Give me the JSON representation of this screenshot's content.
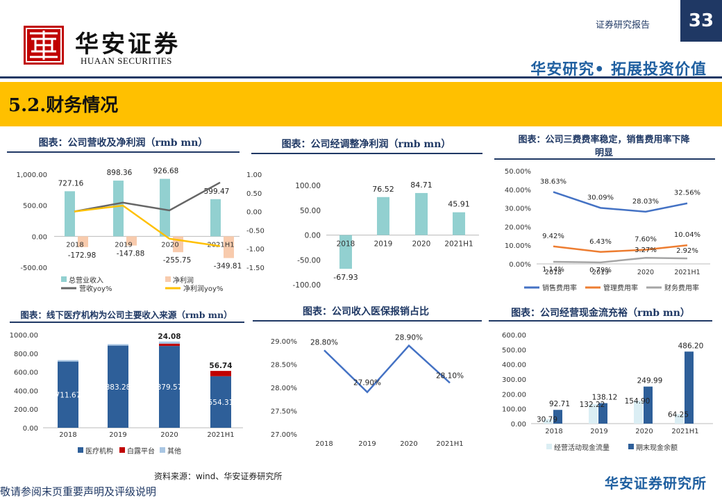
{
  "header": {
    "logo_cn": "华安证券",
    "logo_en": "HUAAN SECURITIES",
    "report_type": "证券研究报告",
    "page_number": "33",
    "slogan": "华安研究• 拓展投资价值",
    "colors": {
      "navy": "#1f3864",
      "accent": "#1f5fa0",
      "band": "#ffc000",
      "seal": "#c00000"
    }
  },
  "section_title": "5.2.财务情况",
  "chart_titles": {
    "c1": "图表：公司营收及净利润（rmb mn）",
    "c2": "图表：公司经调整净利润（rmb mn）",
    "c3_line1": "图表：公司三费费率稳定，销售费用率下降",
    "c3_line2": "明显",
    "c4": "图表：线下医疗机构为公司主要收入来源（rmb mn）",
    "c5": "图表：公司收入医保报销占比",
    "c6": "图表：公司经营现金流充裕（rmb mn）"
  },
  "chart_data": [
    {
      "id": "c1",
      "type": "bar",
      "categories": [
        "2018",
        "2019",
        "2020",
        "2021H1"
      ],
      "series": [
        {
          "name": "总营业收入",
          "kind": "bar",
          "axis": "left",
          "color": "#92d0d0",
          "values": [
            727.16,
            898.36,
            926.68,
            599.47
          ],
          "labels": [
            "727.16",
            "898.36",
            "926.68",
            "599.47"
          ]
        },
        {
          "name": "净利润",
          "kind": "bar",
          "axis": "left",
          "color": "#f8cbad",
          "values": [
            -172.98,
            -147.88,
            -255.75,
            -349.81
          ],
          "labels": [
            "-172.98",
            "-147.88",
            "-255.75",
            "-349.81"
          ]
        },
        {
          "name": "营收yoy%",
          "kind": "line",
          "axis": "right",
          "color": "#666666",
          "values": [
            0.0,
            0.24,
            0.03,
            0.78
          ]
        },
        {
          "name": "净利润yoy%",
          "kind": "line",
          "axis": "right",
          "color": "#ffc000",
          "values": [
            0.0,
            0.16,
            -0.73,
            -0.93
          ]
        }
      ],
      "y_left": {
        "ticks": [
          1000,
          500,
          0,
          -500
        ],
        "tick_labels": [
          "1,000.00",
          "500.00",
          "0.00",
          "-500.00"
        ],
        "range": [
          -500,
          1000
        ]
      },
      "y_right": {
        "ticks": [
          1,
          0.5,
          0,
          -0.5,
          -1,
          -1.5
        ],
        "tick_labels": [
          "1.00",
          "0.50",
          "0.00",
          "-0.50",
          "-1.00",
          "-1.50"
        ],
        "range": [
          -1.5,
          1
        ]
      }
    },
    {
      "id": "c2",
      "type": "bar",
      "categories": [
        "2018",
        "2019",
        "2020",
        "2021H1"
      ],
      "values": [
        -67.93,
        76.52,
        84.71,
        45.91
      ],
      "labels": [
        "-67.93",
        "76.52",
        "84.71",
        "45.91"
      ],
      "color": "#92d0d0",
      "y": {
        "ticks": [
          100,
          50,
          0,
          -50,
          -100
        ],
        "tick_labels": [
          "100.00",
          "50.00",
          "0.00",
          "-50.00",
          "-100.00"
        ],
        "range": [
          -100,
          100
        ]
      }
    },
    {
      "id": "c3",
      "type": "line",
      "categories": [
        "2018",
        "2019",
        "2020",
        "2021H1"
      ],
      "series": [
        {
          "name": "销售费用率",
          "color": "#4472c4",
          "values": [
            38.63,
            30.09,
            28.03,
            32.56
          ],
          "labels": [
            "38.63%",
            "30.09%",
            "28.03%",
            "32.56%"
          ]
        },
        {
          "name": "管理费用率",
          "color": "#ed7d31",
          "values": [
            9.42,
            6.43,
            7.6,
            10.04
          ],
          "labels": [
            "9.42%",
            "6.43%",
            "7.60%",
            "10.04%"
          ]
        },
        {
          "name": "财务费用率",
          "color": "#a5a5a5",
          "values": [
            1.14,
            0.79,
            3.27,
            2.92
          ],
          "labels": [
            "1.14%",
            "0.79%",
            "3.27%",
            "2.92%"
          ]
        }
      ],
      "y": {
        "ticks": [
          50,
          40,
          30,
          20,
          10,
          0
        ],
        "tick_labels": [
          "50.00%",
          "40.00%",
          "30.00%",
          "20.00%",
          "10.00%",
          "0.00%"
        ],
        "range": [
          0,
          50
        ]
      }
    },
    {
      "id": "c4",
      "type": "bar",
      "stacked": true,
      "categories": [
        "2018",
        "2019",
        "2020",
        "2021H1"
      ],
      "series": [
        {
          "name": "医疗机构",
          "color": "#2e5f99",
          "values": [
            711.67,
            883.28,
            879.57,
            554.31
          ],
          "labels": [
            "711.67",
            "883.28",
            "879.57",
            "554.31"
          ]
        },
        {
          "name": "白露平台",
          "color": "#c00000",
          "values": [
            0,
            0,
            24.08,
            56.74
          ],
          "labels": [
            "",
            "",
            "24.08",
            "56.74"
          ]
        },
        {
          "name": "其他",
          "color": "#a9c6e3",
          "values": [
            15.49,
            15.08,
            23.03,
            0
          ]
        }
      ],
      "y": {
        "ticks": [
          1000,
          800,
          600,
          400,
          200,
          0
        ],
        "tick_labels": [
          "1000.00",
          "800.00",
          "600.00",
          "400.00",
          "200.00",
          "0.00"
        ],
        "range": [
          0,
          1000
        ]
      }
    },
    {
      "id": "c5",
      "type": "line",
      "categories": [
        "2018",
        "2019",
        "2020",
        "2021H1"
      ],
      "series": [
        {
          "name": "",
          "color": "#4472c4",
          "values": [
            28.8,
            27.9,
            28.9,
            28.1
          ],
          "labels": [
            "28.80%",
            "27.90%",
            "28.90%",
            "28.10%"
          ]
        }
      ],
      "y": {
        "ticks": [
          29.0,
          28.5,
          28.0,
          27.5,
          27.0
        ],
        "tick_labels": [
          "29.00%",
          "28.50%",
          "28.00%",
          "27.50%",
          "27.00%"
        ],
        "range": [
          27,
          29
        ]
      }
    },
    {
      "id": "c6",
      "type": "bar",
      "categories": [
        "2018",
        "2019",
        "2020",
        "2021H1"
      ],
      "series": [
        {
          "name": "经营活动现金流量",
          "color": "#dbeef4",
          "values": [
            30.79,
            132.22,
            154.9,
            64.25
          ],
          "labels": [
            "30.79",
            "132.22",
            "154.90",
            "64.25"
          ]
        },
        {
          "name": "期末现金余额",
          "color": "#2e5f99",
          "values": [
            92.71,
            138.12,
            249.99,
            486.2
          ],
          "labels": [
            "92.71",
            "138.12",
            "249.99",
            "486.20"
          ]
        }
      ],
      "y": {
        "ticks": [
          600,
          500,
          400,
          300,
          200,
          100,
          0
        ],
        "tick_labels": [
          "600.00",
          "500.00",
          "400.00",
          "300.00",
          "200.00",
          "100.00",
          "0.00"
        ],
        "range": [
          0,
          600
        ]
      }
    }
  ],
  "source": "资料来源：wind、华安证券研究所",
  "footer": {
    "left": "敬请参阅末页重要声明及评级说明",
    "right": "华安证券研究所"
  }
}
